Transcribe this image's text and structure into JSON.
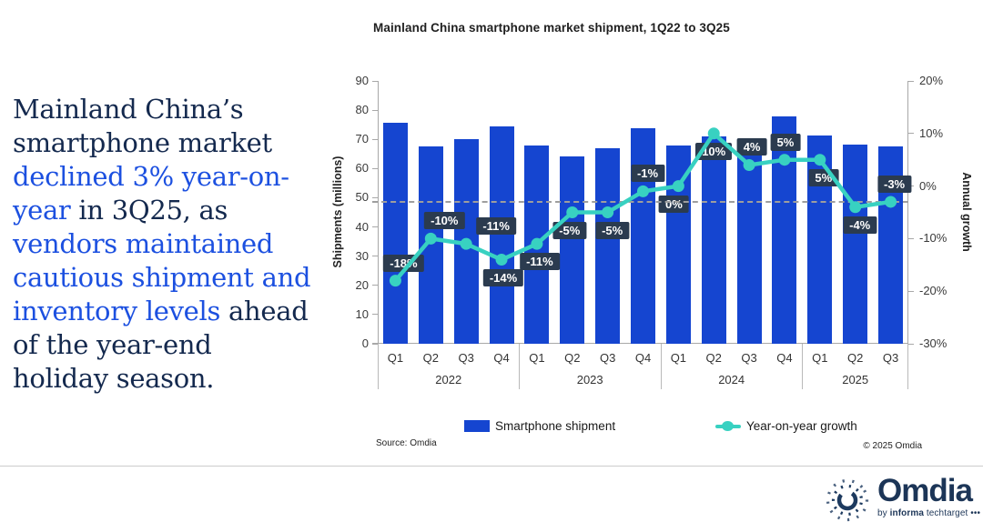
{
  "headline": {
    "segments": [
      {
        "text": "Mainland China’s smartphone market ",
        "tone": "dark"
      },
      {
        "text": "declined 3% year-on-year",
        "tone": "blue"
      },
      {
        "text": " in 3Q25, as ",
        "tone": "dark"
      },
      {
        "text": "vendors maintained cautious shipment and inventory levels",
        "tone": "blue"
      },
      {
        "text": " ahead of the year-end holiday season.",
        "tone": "dark"
      }
    ]
  },
  "chart": {
    "title": "Mainland China smartphone market shipment, 1Q22 to 3Q25",
    "source_note": "Source: Omdia",
    "copyright": "© 2025 Omdia",
    "legend": [
      {
        "label": "Smartphone shipment",
        "marker": "bar-swatch"
      },
      {
        "label": "Year-on-year growth",
        "marker": "line-dot"
      }
    ]
  },
  "chart_data": {
    "type": "bar",
    "subtype": "bar+line combo, dual axis",
    "title": "Mainland China smartphone market shipment, 1Q22 to 3Q25",
    "categories": [
      "Q1",
      "Q2",
      "Q3",
      "Q4",
      "Q1",
      "Q2",
      "Q3",
      "Q4",
      "Q1",
      "Q2",
      "Q3",
      "Q4",
      "Q1",
      "Q2",
      "Q3"
    ],
    "year_groups": [
      {
        "label": "2022",
        "count": 4
      },
      {
        "label": "2023",
        "count": 4
      },
      {
        "label": "2024",
        "count": 4
      },
      {
        "label": "2025",
        "count": 3
      }
    ],
    "series": [
      {
        "name": "Smartphone shipment",
        "type": "bar",
        "axis": "left",
        "values": [
          75.8,
          67.6,
          70.2,
          74.5,
          67.8,
          64.3,
          66.8,
          73.9,
          67.9,
          71.0,
          69.4,
          77.7,
          71.4,
          68.3,
          67.5
        ]
      },
      {
        "name": "Year-on-year growth",
        "type": "line",
        "axis": "right",
        "values_pct": [
          -18,
          -10,
          -11,
          -14,
          -11,
          -5,
          -5,
          -1,
          0,
          10,
          4,
          5,
          5,
          -4,
          -3
        ],
        "labels": [
          "-18%",
          "-10%",
          "-11%",
          "-14%",
          "-11%",
          "-5%",
          "-5%",
          "-1%",
          "0%",
          "10%",
          "4%",
          "5%",
          "5%",
          "-4%",
          "-3%"
        ],
        "label_pos": [
          "above",
          "above",
          "above",
          "below",
          "below",
          "below",
          "below",
          "above",
          "below",
          "below",
          "above",
          "above",
          "below",
          "below",
          "above"
        ],
        "label_dx": [
          9,
          15,
          33,
          2,
          3,
          -3,
          5,
          5,
          -5,
          0,
          3,
          1,
          4,
          5,
          4
        ]
      }
    ],
    "left_axis": {
      "label": "Shipments (millions)",
      "min": 0,
      "max": 90,
      "step": 10
    },
    "right_axis": {
      "label": "Annual growth",
      "min": -30,
      "max": 20,
      "step": 10,
      "suffix": "%"
    },
    "reference_line_pct": -3,
    "grid": false,
    "legend_position": "bottom"
  },
  "colors": {
    "bar": "#1545d0",
    "teal": "#38d1c1",
    "labelbox": "#2b3b4f",
    "dashed": "#9e9e9e",
    "axis": "#a8a8a8",
    "dark_navy": "#14294e",
    "headline_blue": "#1c50e0",
    "logo_navy": "#1c3557"
  },
  "branding": {
    "logo_name": "Omdia",
    "logo_sub_prefix": "by ",
    "logo_sub_bold": "informa",
    "logo_sub_rest": " techtarget •••"
  }
}
